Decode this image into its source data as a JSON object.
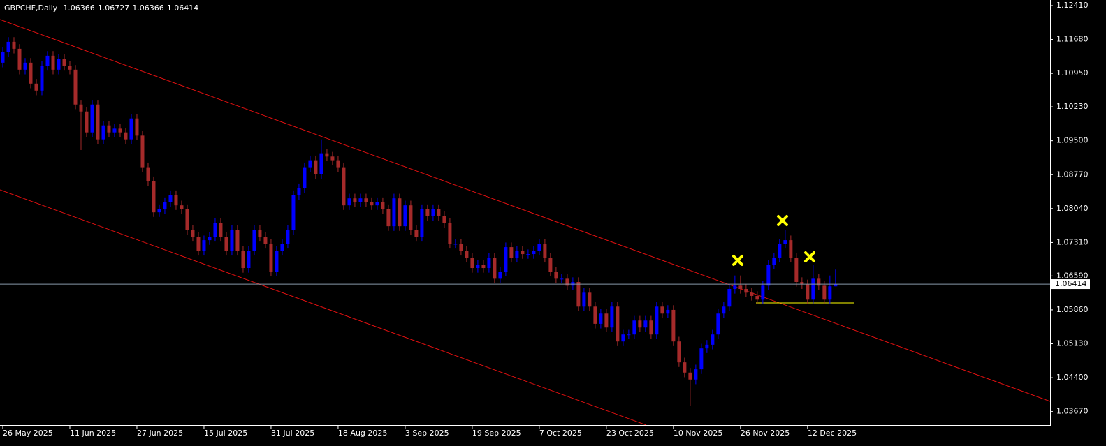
{
  "chart_data": {
    "type": "candlestick",
    "title": "GBPCHF,Daily",
    "open": [
      1.1118,
      1.1141,
      1.1163,
      1.1148,
      1.1103,
      1.1118,
      1.1073,
      1.1058,
      1.1111,
      1.1133,
      1.1103,
      1.1126,
      1.1111,
      1.1103,
      1.1028,
      1.1013,
      1.0968,
      1.1028,
      1.0953,
      1.0983,
      1.0968,
      1.0976,
      1.0968,
      1.0953,
      1.0998,
      1.0961,
      1.0893,
      1.0863,
      1.0796,
      1.0803,
      1.0818,
      1.0833,
      1.0811,
      1.0803,
      1.0758,
      1.0743,
      1.0713,
      1.0736,
      1.0743,
      1.0773,
      1.0743,
      1.0713,
      1.0758,
      1.0713,
      1.0676,
      1.0713,
      1.0758,
      1.0743,
      1.0728,
      1.0668,
      1.0713,
      1.0728,
      1.0758,
      1.0833,
      1.0848,
      1.0893,
      1.0908,
      1.0878,
      1.0923,
      1.0916,
      1.0908,
      1.0893,
      1.0811,
      1.0826,
      1.0818,
      1.0826,
      1.0818,
      1.0811,
      1.0818,
      1.0803,
      1.0766,
      1.0826,
      1.0766,
      1.0811,
      1.0758,
      1.0743,
      1.0803,
      1.0788,
      1.0803,
      1.0788,
      1.0773,
      1.0728,
      1.0728,
      1.0713,
      1.0698,
      1.0676,
      1.0683,
      1.0676,
      1.0698,
      1.0653,
      1.0668,
      1.0721,
      1.0698,
      1.0713,
      1.0706,
      1.0706,
      1.0713,
      1.0728,
      1.0698,
      1.0668,
      1.0653,
      1.0653,
      1.0638,
      1.0646,
      1.0593,
      1.0623,
      1.0593,
      1.0556,
      1.0578,
      1.0548,
      1.0593,
      1.0518,
      1.0533,
      1.0533,
      1.0563,
      1.0548,
      1.0563,
      1.0533,
      1.0593,
      1.0578,
      1.0586,
      1.0518,
      1.0473,
      1.0451,
      1.0436,
      1.0458,
      1.0503,
      1.0511,
      1.0533,
      1.0578,
      1.0593,
      1.0631,
      1.0638,
      1.0631,
      1.0623,
      1.0616,
      1.0608,
      1.0638,
      1.0683,
      1.0698,
      1.0728,
      1.0736,
      1.0698,
      1.0646,
      1.0641,
      1.0608,
      1.0653,
      1.0638,
      1.0608,
      1.06366
    ],
    "high": [
      1.1151,
      1.1173,
      1.1173,
      1.1158,
      1.1128,
      1.1128,
      1.1083,
      1.1121,
      1.1143,
      1.1143,
      1.1136,
      1.1136,
      1.1121,
      1.1113,
      1.1038,
      1.1023,
      1.1038,
      1.1038,
      1.0993,
      1.0993,
      1.0986,
      1.0986,
      1.0978,
      1.1008,
      1.1008,
      1.0971,
      1.0903,
      1.0873,
      1.0813,
      1.0828,
      1.0843,
      1.0843,
      1.0821,
      1.0813,
      1.0768,
      1.0753,
      1.0746,
      1.0753,
      1.0783,
      1.0783,
      1.0753,
      1.0768,
      1.0768,
      1.0723,
      1.0723,
      1.0768,
      1.0768,
      1.0753,
      1.0738,
      1.0723,
      1.0738,
      1.0768,
      1.0843,
      1.0858,
      1.0903,
      1.0918,
      1.0918,
      1.0953,
      1.0933,
      1.0926,
      1.0918,
      1.0903,
      1.0836,
      1.0836,
      1.0836,
      1.0836,
      1.0828,
      1.0828,
      1.0828,
      1.0813,
      1.0836,
      1.0836,
      1.0821,
      1.0821,
      1.0768,
      1.0813,
      1.0813,
      1.0813,
      1.0813,
      1.0798,
      1.0783,
      1.0738,
      1.0738,
      1.0723,
      1.0708,
      1.0693,
      1.0693,
      1.0708,
      1.0708,
      1.0678,
      1.0731,
      1.0731,
      1.0723,
      1.0723,
      1.0716,
      1.0723,
      1.0738,
      1.0738,
      1.0708,
      1.0678,
      1.0663,
      1.0663,
      1.0656,
      1.0656,
      1.0633,
      1.0633,
      1.0603,
      1.0588,
      1.0588,
      1.0603,
      1.0603,
      1.0543,
      1.0543,
      1.0573,
      1.0573,
      1.0573,
      1.0573,
      1.0603,
      1.0603,
      1.0596,
      1.0596,
      1.0528,
      1.0483,
      1.0461,
      1.0468,
      1.0513,
      1.0521,
      1.0543,
      1.0588,
      1.0603,
      1.0641,
      1.066,
      1.066,
      1.0641,
      1.0633,
      1.0626,
      1.0648,
      1.0693,
      1.0708,
      1.0738,
      1.0758,
      1.0746,
      1.0708,
      1.0656,
      1.0651,
      1.0683,
      1.0663,
      1.0648,
      1.066,
      1.06727
    ],
    "low": [
      1.1108,
      1.1131,
      1.1138,
      1.1093,
      1.1093,
      1.1063,
      1.1048,
      1.1048,
      1.1101,
      1.1093,
      1.1093,
      1.1101,
      1.1093,
      1.1018,
      1.093,
      1.0958,
      1.0958,
      1.0943,
      1.0943,
      1.0958,
      1.0958,
      1.0958,
      1.0943,
      1.0943,
      1.0951,
      1.0883,
      1.0853,
      1.0786,
      1.0786,
      1.0793,
      1.0808,
      1.0801,
      1.0793,
      1.0748,
      1.0733,
      1.0703,
      1.0703,
      1.0726,
      1.0733,
      1.0733,
      1.0703,
      1.0703,
      1.0703,
      1.0666,
      1.0666,
      1.0703,
      1.0733,
      1.0718,
      1.0658,
      1.0658,
      1.0703,
      1.0718,
      1.0748,
      1.0823,
      1.0838,
      1.0883,
      1.0868,
      1.0868,
      1.0906,
      1.0898,
      1.0883,
      1.0801,
      1.0801,
      1.0808,
      1.0808,
      1.0808,
      1.0801,
      1.0801,
      1.0793,
      1.0756,
      1.0756,
      1.0756,
      1.0756,
      1.0748,
      1.0733,
      1.0733,
      1.0778,
      1.0778,
      1.0778,
      1.0763,
      1.0718,
      1.0718,
      1.0703,
      1.0688,
      1.0666,
      1.0666,
      1.0666,
      1.0666,
      1.0643,
      1.0643,
      1.0658,
      1.0688,
      1.0688,
      1.0696,
      1.0696,
      1.0696,
      1.0703,
      1.0688,
      1.0658,
      1.0643,
      1.0643,
      1.0628,
      1.0628,
      1.0583,
      1.0583,
      1.0583,
      1.0546,
      1.0546,
      1.0538,
      1.0538,
      1.0508,
      1.0508,
      1.0523,
      1.0523,
      1.0538,
      1.0538,
      1.0523,
      1.0523,
      1.0568,
      1.0568,
      1.0508,
      1.0463,
      1.0441,
      1.038,
      1.0426,
      1.0448,
      1.0493,
      1.0501,
      1.0523,
      1.0568,
      1.0583,
      1.0621,
      1.0621,
      1.0613,
      1.0606,
      1.0598,
      1.0598,
      1.0628,
      1.0673,
      1.0688,
      1.0718,
      1.0688,
      1.0636,
      1.0631,
      1.0598,
      1.0598,
      1.0628,
      1.0598,
      1.0598,
      1.06366
    ],
    "close": [
      1.1141,
      1.1163,
      1.1148,
      1.1103,
      1.1118,
      1.1073,
      1.1058,
      1.1111,
      1.1133,
      1.1103,
      1.1126,
      1.1111,
      1.1103,
      1.1028,
      1.1013,
      1.0968,
      1.1028,
      1.0953,
      1.0983,
      1.0968,
      1.0976,
      1.0968,
      1.0953,
      1.0998,
      1.0961,
      1.0893,
      1.0863,
      1.0796,
      1.0803,
      1.0818,
      1.0833,
      1.0811,
      1.0803,
      1.0758,
      1.0743,
      1.0713,
      1.0736,
      1.0743,
      1.0773,
      1.0743,
      1.0713,
      1.0758,
      1.0713,
      1.0676,
      1.0713,
      1.0758,
      1.0743,
      1.0728,
      1.0668,
      1.0713,
      1.0728,
      1.0758,
      1.0833,
      1.0848,
      1.0893,
      1.0908,
      1.0878,
      1.0923,
      1.0916,
      1.0908,
      1.0893,
      1.0811,
      1.0826,
      1.0818,
      1.0826,
      1.0818,
      1.0811,
      1.0818,
      1.0803,
      1.0766,
      1.0826,
      1.0766,
      1.0811,
      1.0758,
      1.0743,
      1.0803,
      1.0788,
      1.0803,
      1.0788,
      1.0773,
      1.0728,
      1.0728,
      1.0713,
      1.0698,
      1.0676,
      1.0683,
      1.0676,
      1.0698,
      1.0653,
      1.0668,
      1.0721,
      1.0698,
      1.0713,
      1.0706,
      1.0706,
      1.0713,
      1.0728,
      1.0698,
      1.0668,
      1.0653,
      1.0653,
      1.0638,
      1.0646,
      1.0593,
      1.0623,
      1.0593,
      1.0556,
      1.0578,
      1.0548,
      1.0593,
      1.0518,
      1.0533,
      1.0533,
      1.0563,
      1.0548,
      1.0563,
      1.0533,
      1.0593,
      1.0578,
      1.0586,
      1.0518,
      1.0473,
      1.0451,
      1.0436,
      1.0458,
      1.0503,
      1.0511,
      1.0533,
      1.0578,
      1.0593,
      1.0631,
      1.0638,
      1.0631,
      1.0623,
      1.0616,
      1.0608,
      1.0638,
      1.0683,
      1.0698,
      1.0728,
      1.0736,
      1.0698,
      1.0646,
      1.0641,
      1.0608,
      1.0653,
      1.0638,
      1.0608,
      1.06366,
      1.06414
    ],
    "up_color": "#0000ff",
    "down_color": "#a52a2a",
    "bid_color": "#8899aa",
    "xlim": [
      -0.5,
      187.4
    ],
    "xticks": [
      {
        "value": 0,
        "label": "26 May 2025"
      },
      {
        "value": 12,
        "label": "11 Jun 2025"
      },
      {
        "value": 24,
        "label": "27 Jun 2025"
      },
      {
        "value": 36,
        "label": "15 Jul 2025"
      },
      {
        "value": 48,
        "label": "31 Jul 2025"
      },
      {
        "value": 60,
        "label": "18 Aug 2025"
      },
      {
        "value": 72,
        "label": "3 Sep 2025"
      },
      {
        "value": 84,
        "label": "19 Sep 2025"
      },
      {
        "value": 96,
        "label": "7 Oct 2025"
      },
      {
        "value": 108,
        "label": "23 Oct 2025"
      },
      {
        "value": 120,
        "label": "10 Nov 2025"
      },
      {
        "value": 132,
        "label": "26 Nov 2025"
      },
      {
        "value": 144,
        "label": "12 Dec 2025"
      }
    ],
    "ylim": [
      1.0341,
      1.1253
    ],
    "yticks": [
      {
        "value": 1.1241,
        "label": "1.12410"
      },
      {
        "value": 1.1168,
        "label": "1.11680"
      },
      {
        "value": 1.1095,
        "label": "1.10950"
      },
      {
        "value": 1.1023,
        "label": "1.10230"
      },
      {
        "value": 1.095,
        "label": "1.09500"
      },
      {
        "value": 1.0877,
        "label": "1.08770"
      },
      {
        "value": 1.0804,
        "label": "1.08040"
      },
      {
        "value": 1.0731,
        "label": "1.07310"
      },
      {
        "value": 1.0659,
        "label": "1.06590"
      },
      {
        "value": 1.0586,
        "label": "1.05860"
      },
      {
        "value": 1.0513,
        "label": "1.05130"
      },
      {
        "value": 1.044,
        "label": "1.04400"
      },
      {
        "value": 1.0367,
        "label": "1.03670"
      }
    ]
  }
}
